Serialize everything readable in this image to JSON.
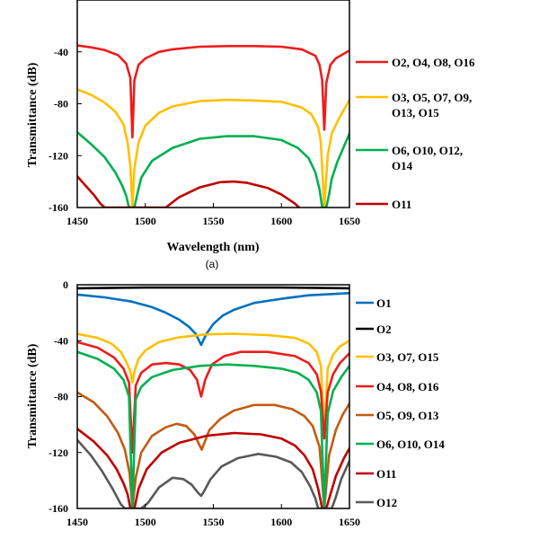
{
  "chart_data": [
    {
      "type": "line",
      "panel_label": "(a)",
      "xlabel": "Wavelength (nm)",
      "ylabel": "Transmittance (dB)",
      "xlim": [
        1450,
        1650
      ],
      "ylim": [
        -160,
        0
      ],
      "xticks": [
        "1450",
        "1500",
        "1550",
        "1600",
        "1650"
      ],
      "yticks": [
        "-40",
        "-80",
        "-120",
        "-160"
      ],
      "legend_position": "right",
      "series": [
        {
          "name": "O2, O4, O8, O16",
          "color": "#ee1c1c",
          "x": [
            1450,
            1460,
            1470,
            1480,
            1486,
            1489,
            1490.5,
            1492,
            1495,
            1500,
            1510,
            1520,
            1540,
            1560,
            1580,
            1600,
            1615,
            1625,
            1628,
            1630,
            1631.5,
            1633,
            1636,
            1640,
            1650
          ],
          "y": [
            -35,
            -36.5,
            -38.5,
            -42.5,
            -49,
            -60,
            -106,
            -62,
            -50,
            -45,
            -40,
            -38,
            -36,
            -35.5,
            -35.5,
            -36,
            -38,
            -43,
            -50,
            -62,
            -100,
            -64,
            -50,
            -45,
            -39
          ]
        },
        {
          "name": "O3, O5, O7, O9, O13, O15",
          "color": "#ffc000",
          "x": [
            1450,
            1460,
            1470,
            1478,
            1484,
            1487,
            1489,
            1490.5,
            1492,
            1495,
            1500,
            1510,
            1520,
            1540,
            1560,
            1580,
            1600,
            1615,
            1622,
            1627,
            1629,
            1631.5,
            1634,
            1637,
            1642,
            1650
          ],
          "y": [
            -69,
            -73,
            -79,
            -86,
            -96,
            -110,
            -128,
            -160,
            -130,
            -110,
            -97,
            -87,
            -82,
            -78,
            -77,
            -77.5,
            -78.5,
            -83,
            -88,
            -98,
            -110,
            -160,
            -120,
            -103,
            -92,
            -77
          ]
        },
        {
          "name": "O6, O10, O12, O14",
          "color": "#00b050",
          "x": [
            1450,
            1460,
            1470,
            1478,
            1483,
            1486,
            1488,
            1490,
            1492,
            1494,
            1497,
            1505,
            1520,
            1540,
            1560,
            1580,
            1600,
            1612,
            1620,
            1625,
            1628,
            1630,
            1633,
            1635,
            1637,
            1641,
            1650
          ],
          "y": [
            -102,
            -111,
            -121,
            -133,
            -143,
            -151,
            -160,
            -160,
            -160,
            -150,
            -137,
            -124,
            -114,
            -107,
            -105,
            -105,
            -108,
            -114,
            -122,
            -133,
            -146,
            -160,
            -160,
            -150,
            -138,
            -125,
            -103
          ]
        },
        {
          "name": "O11",
          "color": "#c00000",
          "x": [
            1450,
            1456,
            1462,
            1467,
            1470,
            1515,
            1525,
            1540,
            1555,
            1565,
            1575,
            1590,
            1600,
            1610,
            1613
          ],
          "y": [
            -136,
            -143,
            -150,
            -157,
            -160,
            -160,
            -152,
            -144.5,
            -140.5,
            -140,
            -141,
            -145,
            -150,
            -157,
            -160
          ]
        }
      ]
    },
    {
      "type": "line",
      "xlabel": "",
      "ylabel": "Transmittance (dB)",
      "xlim": [
        1450,
        1650
      ],
      "ylim": [
        -160,
        0
      ],
      "xticks": [
        "1450",
        "1500",
        "1550",
        "1600",
        "1650"
      ],
      "yticks": [
        "0",
        "-40",
        "-80",
        "-120",
        "-160"
      ],
      "legend_position": "right",
      "series": [
        {
          "name": "O1",
          "color": "#0070c0",
          "x": [
            1450,
            1470,
            1490,
            1505,
            1515,
            1525,
            1532,
            1537,
            1541,
            1545,
            1550,
            1557,
            1565,
            1580,
            1600,
            1620,
            1650
          ],
          "y": [
            -7,
            -9,
            -12,
            -16,
            -20,
            -25,
            -30,
            -35,
            -43,
            -35,
            -28,
            -22,
            -18,
            -13,
            -10,
            -7.5,
            -6
          ]
        },
        {
          "name": "O2",
          "color": "#000000",
          "x": [
            1450,
            1500,
            1550,
            1600,
            1650
          ],
          "y": [
            -2.5,
            -2,
            -2,
            -2,
            -2.5
          ]
        },
        {
          "name": "O3, O7, O15",
          "color": "#ffc000",
          "x": [
            1450,
            1465,
            1475,
            1482,
            1486,
            1489,
            1490.5,
            1492,
            1495,
            1500,
            1510,
            1525,
            1545,
            1565,
            1590,
            1610,
            1620,
            1626,
            1629,
            1631.5,
            1634,
            1638,
            1643,
            1650
          ],
          "y": [
            -35,
            -38,
            -42,
            -48,
            -55,
            -62,
            -70,
            -62,
            -53,
            -47,
            -41,
            -37.5,
            -35.5,
            -35,
            -36,
            -38,
            -42,
            -48,
            -58,
            -106,
            -60,
            -50,
            -44,
            -40
          ]
        },
        {
          "name": "O4, O8, O16",
          "color": "#ee1c1c",
          "x": [
            1450,
            1465,
            1477,
            1484,
            1488,
            1490.5,
            1493,
            1497,
            1505,
            1515,
            1525,
            1533,
            1538,
            1541,
            1544,
            1549,
            1558,
            1570,
            1590,
            1610,
            1620,
            1626,
            1629,
            1631.5,
            1634,
            1638,
            1643,
            1650
          ],
          "y": [
            -41,
            -45,
            -52,
            -60,
            -70,
            -120,
            -72,
            -63,
            -57,
            -56,
            -57,
            -61,
            -68,
            -80,
            -68,
            -57,
            -51,
            -48,
            -48,
            -51,
            -56,
            -64,
            -76,
            -110,
            -77,
            -64,
            -56,
            -49
          ]
        },
        {
          "name": "O5, O9, O13",
          "color": "#c55a11",
          "x": [
            1450,
            1462,
            1472,
            1480,
            1485,
            1488.5,
            1490.5,
            1493,
            1497,
            1505,
            1515,
            1523,
            1530,
            1536,
            1540,
            1541.5,
            1543,
            1547,
            1555,
            1565,
            1580,
            1595,
            1608,
            1617,
            1623,
            1628,
            1631.5,
            1635,
            1640,
            1645,
            1650
          ],
          "y": [
            -77,
            -84,
            -94,
            -106,
            -118,
            -135,
            -160,
            -138,
            -120,
            -108,
            -102,
            -99.5,
            -101,
            -107,
            -115,
            -118,
            -114,
            -104,
            -96,
            -90,
            -86,
            -86,
            -89,
            -94,
            -101,
            -116,
            -160,
            -122,
            -104,
            -93,
            -85
          ]
        },
        {
          "name": "O6, O10, O14",
          "color": "#00b050",
          "x": [
            1450,
            1465,
            1477,
            1484,
            1488,
            1490.5,
            1493,
            1497,
            1505,
            1520,
            1540,
            1560,
            1580,
            1600,
            1612,
            1620,
            1626,
            1629,
            1631.5,
            1634,
            1638,
            1644,
            1650
          ],
          "y": [
            -48,
            -53,
            -60,
            -68,
            -80,
            -160,
            -82,
            -73,
            -66,
            -61,
            -58,
            -57,
            -58,
            -60,
            -63,
            -68,
            -77,
            -90,
            -160,
            -92,
            -76,
            -66,
            -58
          ]
        },
        {
          "name": "O11",
          "color": "#c00000",
          "x": [
            1450,
            1462,
            1472,
            1479,
            1484,
            1487,
            1489,
            1490.5,
            1492,
            1495,
            1501,
            1512,
            1525,
            1545,
            1565,
            1585,
            1600,
            1610,
            1617,
            1623,
            1627,
            1630,
            1633,
            1636,
            1640,
            1646,
            1650
          ],
          "y": [
            -103,
            -112,
            -122,
            -132,
            -142,
            -150,
            -160,
            -160,
            -160,
            -146,
            -132,
            -120,
            -113,
            -108,
            -106,
            -107,
            -110,
            -115,
            -122,
            -132,
            -146,
            -160,
            -160,
            -150,
            -137,
            -124,
            -117
          ]
        },
        {
          "name": "O12",
          "color": "#595959",
          "x": [
            1450,
            1460,
            1468,
            1476,
            1482,
            1485,
            1497,
            1502,
            1510,
            1520,
            1528,
            1534,
            1539,
            1541,
            1543,
            1548,
            1556,
            1568,
            1583,
            1596,
            1607,
            1615,
            1621,
            1625,
            1627,
            1637,
            1640,
            1644,
            1650
          ],
          "y": [
            -111,
            -122,
            -133,
            -146,
            -157,
            -160,
            -160,
            -156,
            -145,
            -138,
            -139,
            -143,
            -149,
            -151,
            -148,
            -139,
            -130,
            -124,
            -121,
            -123,
            -127,
            -134,
            -144,
            -153,
            -160,
            -160,
            -152,
            -139,
            -126
          ]
        }
      ]
    }
  ]
}
